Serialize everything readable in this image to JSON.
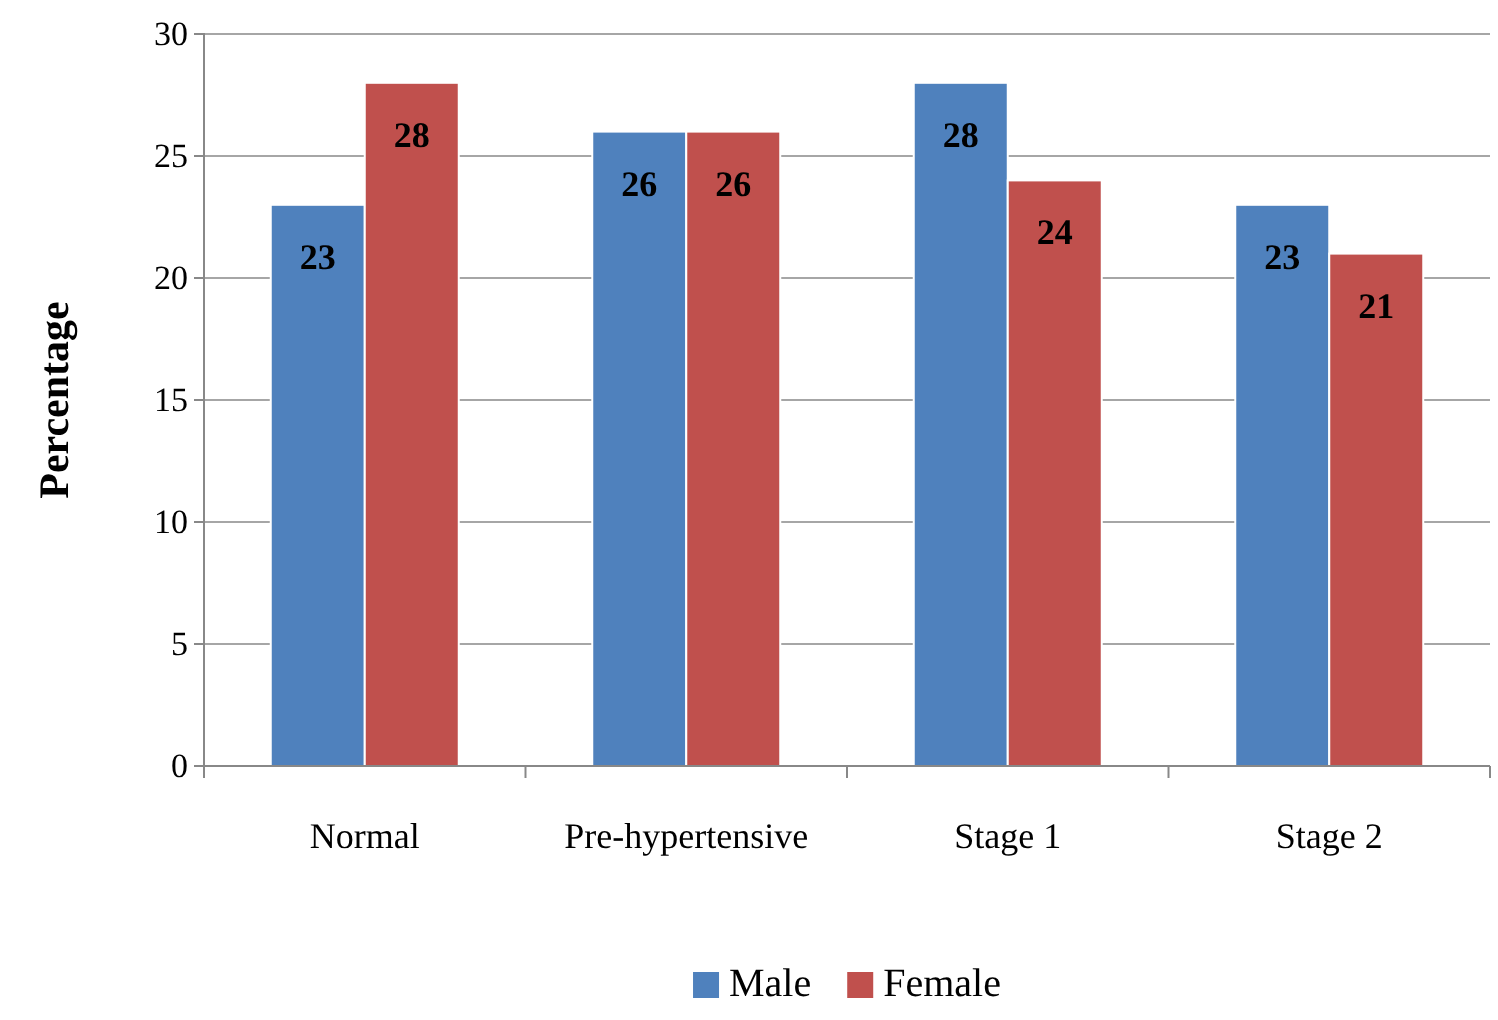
{
  "chart_data": {
    "type": "bar",
    "ylabel": "Percentage",
    "categories": [
      "Normal",
      "Pre-hypertensive",
      "Stage 1",
      "Stage 2"
    ],
    "series": [
      {
        "name": "Male",
        "color": "#4f81bd",
        "values": [
          23,
          26,
          28,
          23
        ]
      },
      {
        "name": "Female",
        "color": "#c0504d",
        "values": [
          28,
          26,
          24,
          21
        ]
      }
    ],
    "ylim": [
      0,
      30
    ],
    "yticks": [
      0,
      5,
      10,
      15,
      20,
      25,
      30
    ],
    "grid": "y",
    "legend": "bottom",
    "data_labels": true
  }
}
